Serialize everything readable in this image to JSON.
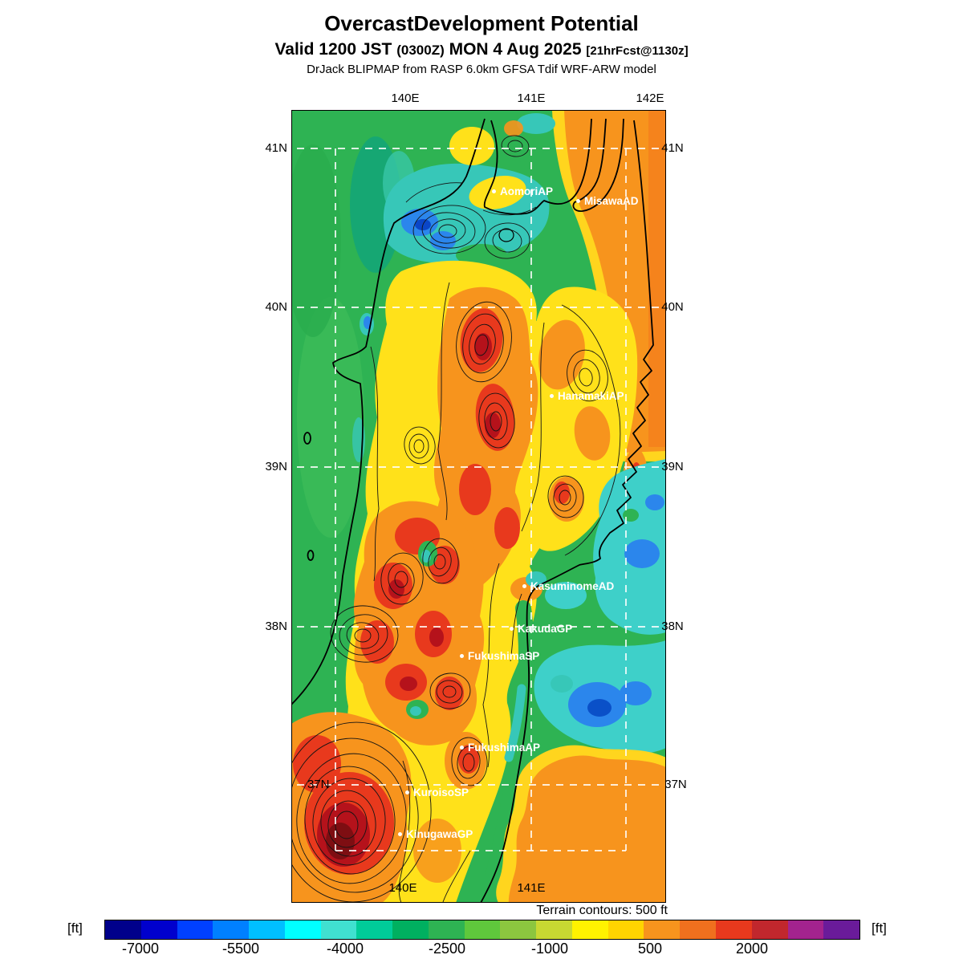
{
  "header": {
    "title": "OvercastDevelopment Potential",
    "valid_prefix": "Valid 1200 JST",
    "valid_zulu": "(0300Z)",
    "valid_date": "MON 4 Aug 2025",
    "valid_fcst": "[21hrFcst@1130z]",
    "model_line": "DrJack BLIPMAP from RASP 6.0km GFSA Tdif WRF-ARW model"
  },
  "map": {
    "lon_top": [
      "140E",
      "141E",
      "142E"
    ],
    "lon_bottom": [
      "140E",
      "141E"
    ],
    "lat_left": [
      "41N",
      "40N",
      "39N",
      "38N",
      "37N"
    ],
    "lat_right": [
      "41N",
      "40N",
      "39N",
      "38N",
      "37N"
    ],
    "stations": [
      "AomoriAP",
      "MisawaAD",
      "HanamakiAP",
      "KasuminomeAD",
      "KakudaGP",
      "FukushimaSP",
      "FukushimaAP",
      "KuroisoSP",
      "KinugawaGP"
    ],
    "terrain_note": "Terrain contours: 500 ft"
  },
  "colorbar": {
    "unit_left": "[ft]",
    "unit_right": "[ft]",
    "ticks": [
      "-7000",
      "-5500",
      "-4000",
      "-2500",
      "-1000",
      "500",
      "2000"
    ],
    "colors": [
      "#00008B",
      "#0000CD",
      "#0040FF",
      "#0080FF",
      "#00BFFF",
      "#00FFFF",
      "#40E0D0",
      "#00CC99",
      "#00B060",
      "#2EB353",
      "#5FC83C",
      "#8CC63F",
      "#C8D832",
      "#FFF200",
      "#FFD400",
      "#F7941D",
      "#F0701E",
      "#E8391D",
      "#C1272D",
      "#A3238E",
      "#6A1B9A"
    ]
  }
}
